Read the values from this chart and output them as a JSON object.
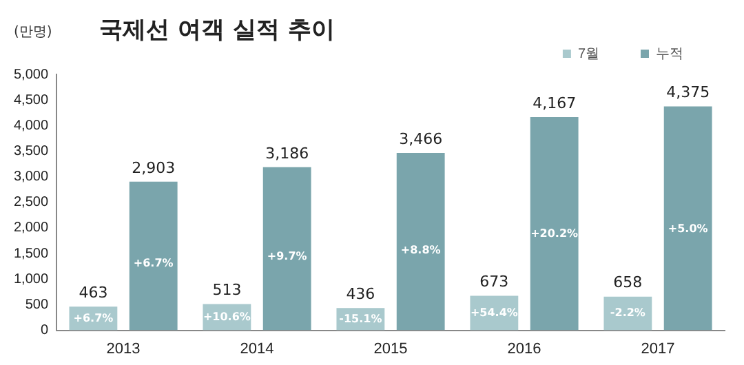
{
  "chart_data": {
    "type": "bar",
    "title": "국제선 여객 실적 추이",
    "ylabel": "(만명)",
    "categories": [
      "2013",
      "2014",
      "2015",
      "2016",
      "2017"
    ],
    "series": [
      {
        "name": "7월",
        "color": "#a9c9cd",
        "values": [
          463,
          513,
          436,
          673,
          658
        ],
        "value_labels": [
          "463",
          "513",
          "436",
          "673",
          "658"
        ]
      },
      {
        "name": "누적",
        "color": "#7aa5ac",
        "values": [
          2903,
          3186,
          3466,
          4167,
          4375
        ],
        "value_labels": [
          "2,903",
          "3,186",
          "3,466",
          "4,167",
          "4,375"
        ]
      }
    ],
    "ylim": [
      0,
      5000
    ],
    "yticks": [
      0,
      500,
      {
        "value": 1000,
        "label": "1,000"
      },
      {
        "value": 1500,
        "label": "1,500"
      },
      {
        "value": 2000,
        "label": "2,000"
      },
      {
        "value": 2500,
        "label": "2,500"
      },
      {
        "value": 3000,
        "label": "3,000"
      },
      {
        "value": 3500,
        "label": "3,500"
      },
      {
        "value": 4000,
        "label": "4,000"
      },
      {
        "value": 4500,
        "label": "4,500"
      },
      {
        "value": 5000,
        "label": "5,000"
      }
    ],
    "grid": false,
    "legend": "top right",
    "annotations": [
      "+6.7%",
      "+10.6%",
      "-15.1%",
      "+54.4%",
      "-2.2%",
      "+6.7%",
      "+9.7%",
      "+8.8%",
      "+20.2%",
      "+5.0%"
    ]
  }
}
